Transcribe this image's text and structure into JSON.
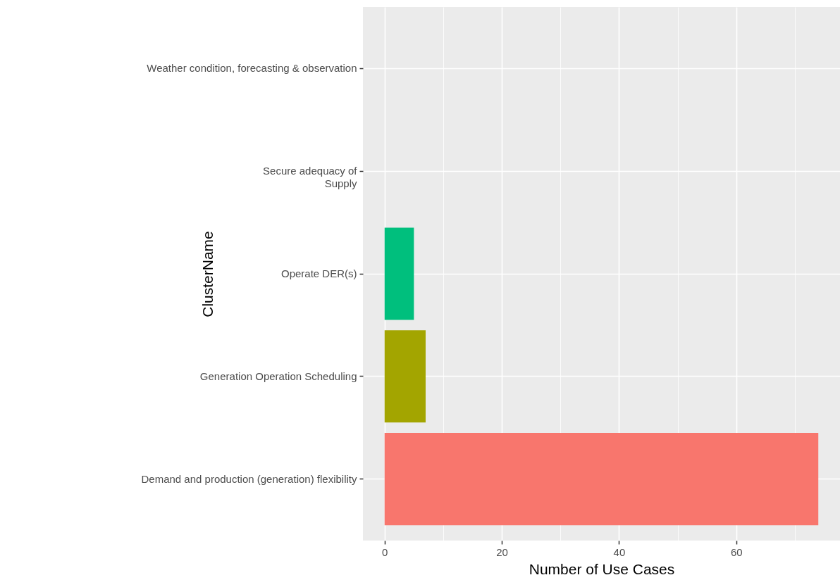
{
  "chart_data": {
    "type": "bar",
    "orientation": "horizontal",
    "categories": [
      "Weather condition, forecasting & observation",
      "Secure adequacy of\nSupply",
      "Operate DER(s)",
      "Generation Operation Scheduling",
      "Demand and production (generation) flexibility"
    ],
    "values": [
      0,
      0,
      5,
      7,
      74
    ],
    "colors": [
      "#e76bf3",
      "#00b0f6",
      "#00bf7d",
      "#a3a500",
      "#f8766d"
    ],
    "xlim": [
      -3.7,
      77.7
    ],
    "xticks": [
      0,
      {
        "value": 10,
        "label": null
      },
      20,
      {
        "value": 30,
        "label": null
      },
      40,
      {
        "value": 50,
        "label": null
      },
      60,
      {
        "value": 70,
        "label": null
      }
    ],
    "xlabel": "Number of Use Cases",
    "ylabel": "ClusterName",
    "grid": true
  }
}
